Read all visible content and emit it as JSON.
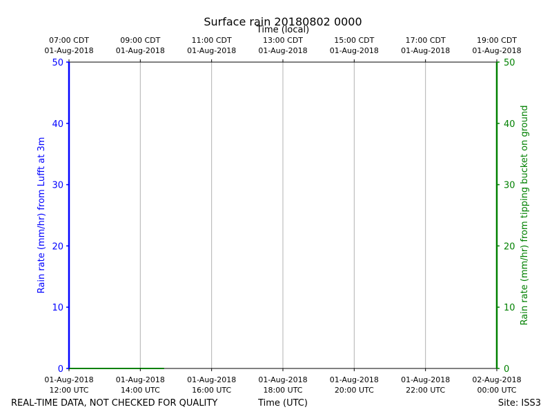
{
  "chart_data": {
    "type": "line",
    "title": "Surface rain 20180802 0000",
    "top_axis_label": "Time (local)",
    "xlabel": "Time (UTC)",
    "ylabel_left": "Rain rate (mm/hr) from Lufft at 3m",
    "ylabel_right": "Rain rate (mm/hr) from tipping bucket on ground",
    "ylim": [
      0,
      50
    ],
    "yticks": [
      "0",
      "10",
      "20",
      "30",
      "40",
      "50"
    ],
    "xlim": [
      "2018-08-01 12:00 UTC",
      "2018-08-02 00:00 UTC"
    ],
    "x_ticks_bottom": [
      {
        "date": "01-Aug-2018",
        "time": "12:00 UTC"
      },
      {
        "date": "01-Aug-2018",
        "time": "14:00 UTC"
      },
      {
        "date": "01-Aug-2018",
        "time": "16:00 UTC"
      },
      {
        "date": "01-Aug-2018",
        "time": "18:00 UTC"
      },
      {
        "date": "01-Aug-2018",
        "time": "20:00 UTC"
      },
      {
        "date": "01-Aug-2018",
        "time": "22:00 UTC"
      },
      {
        "date": "02-Aug-2018",
        "time": "00:00 UTC"
      }
    ],
    "x_ticks_top": [
      {
        "time": "07:00 CDT",
        "date": "01-Aug-2018"
      },
      {
        "time": "09:00 CDT",
        "date": "01-Aug-2018"
      },
      {
        "time": "11:00 CDT",
        "date": "01-Aug-2018"
      },
      {
        "time": "13:00 CDT",
        "date": "01-Aug-2018"
      },
      {
        "time": "15:00 CDT",
        "date": "01-Aug-2018"
      },
      {
        "time": "17:00 CDT",
        "date": "01-Aug-2018"
      },
      {
        "time": "19:00 CDT",
        "date": "01-Aug-2018"
      }
    ],
    "series": [
      {
        "color": "#0000ff",
        "axis": "left",
        "x": [
          "2018-08-01 12:00 UTC"
        ],
        "values": [
          0
        ]
      },
      {
        "color": "#008000",
        "axis": "right",
        "x": [
          "2018-08-01 12:00 UTC",
          "2018-08-01 14:40 UTC"
        ],
        "values": [
          0,
          0
        ]
      }
    ],
    "grid": "vertical",
    "colors": {
      "left_axis": "#0000ff",
      "right_axis": "#008000",
      "grid": "#b0b0b0"
    }
  },
  "footer": {
    "left": "REAL-TIME DATA, NOT CHECKED FOR QUALITY",
    "right": "Site: ISS3"
  }
}
